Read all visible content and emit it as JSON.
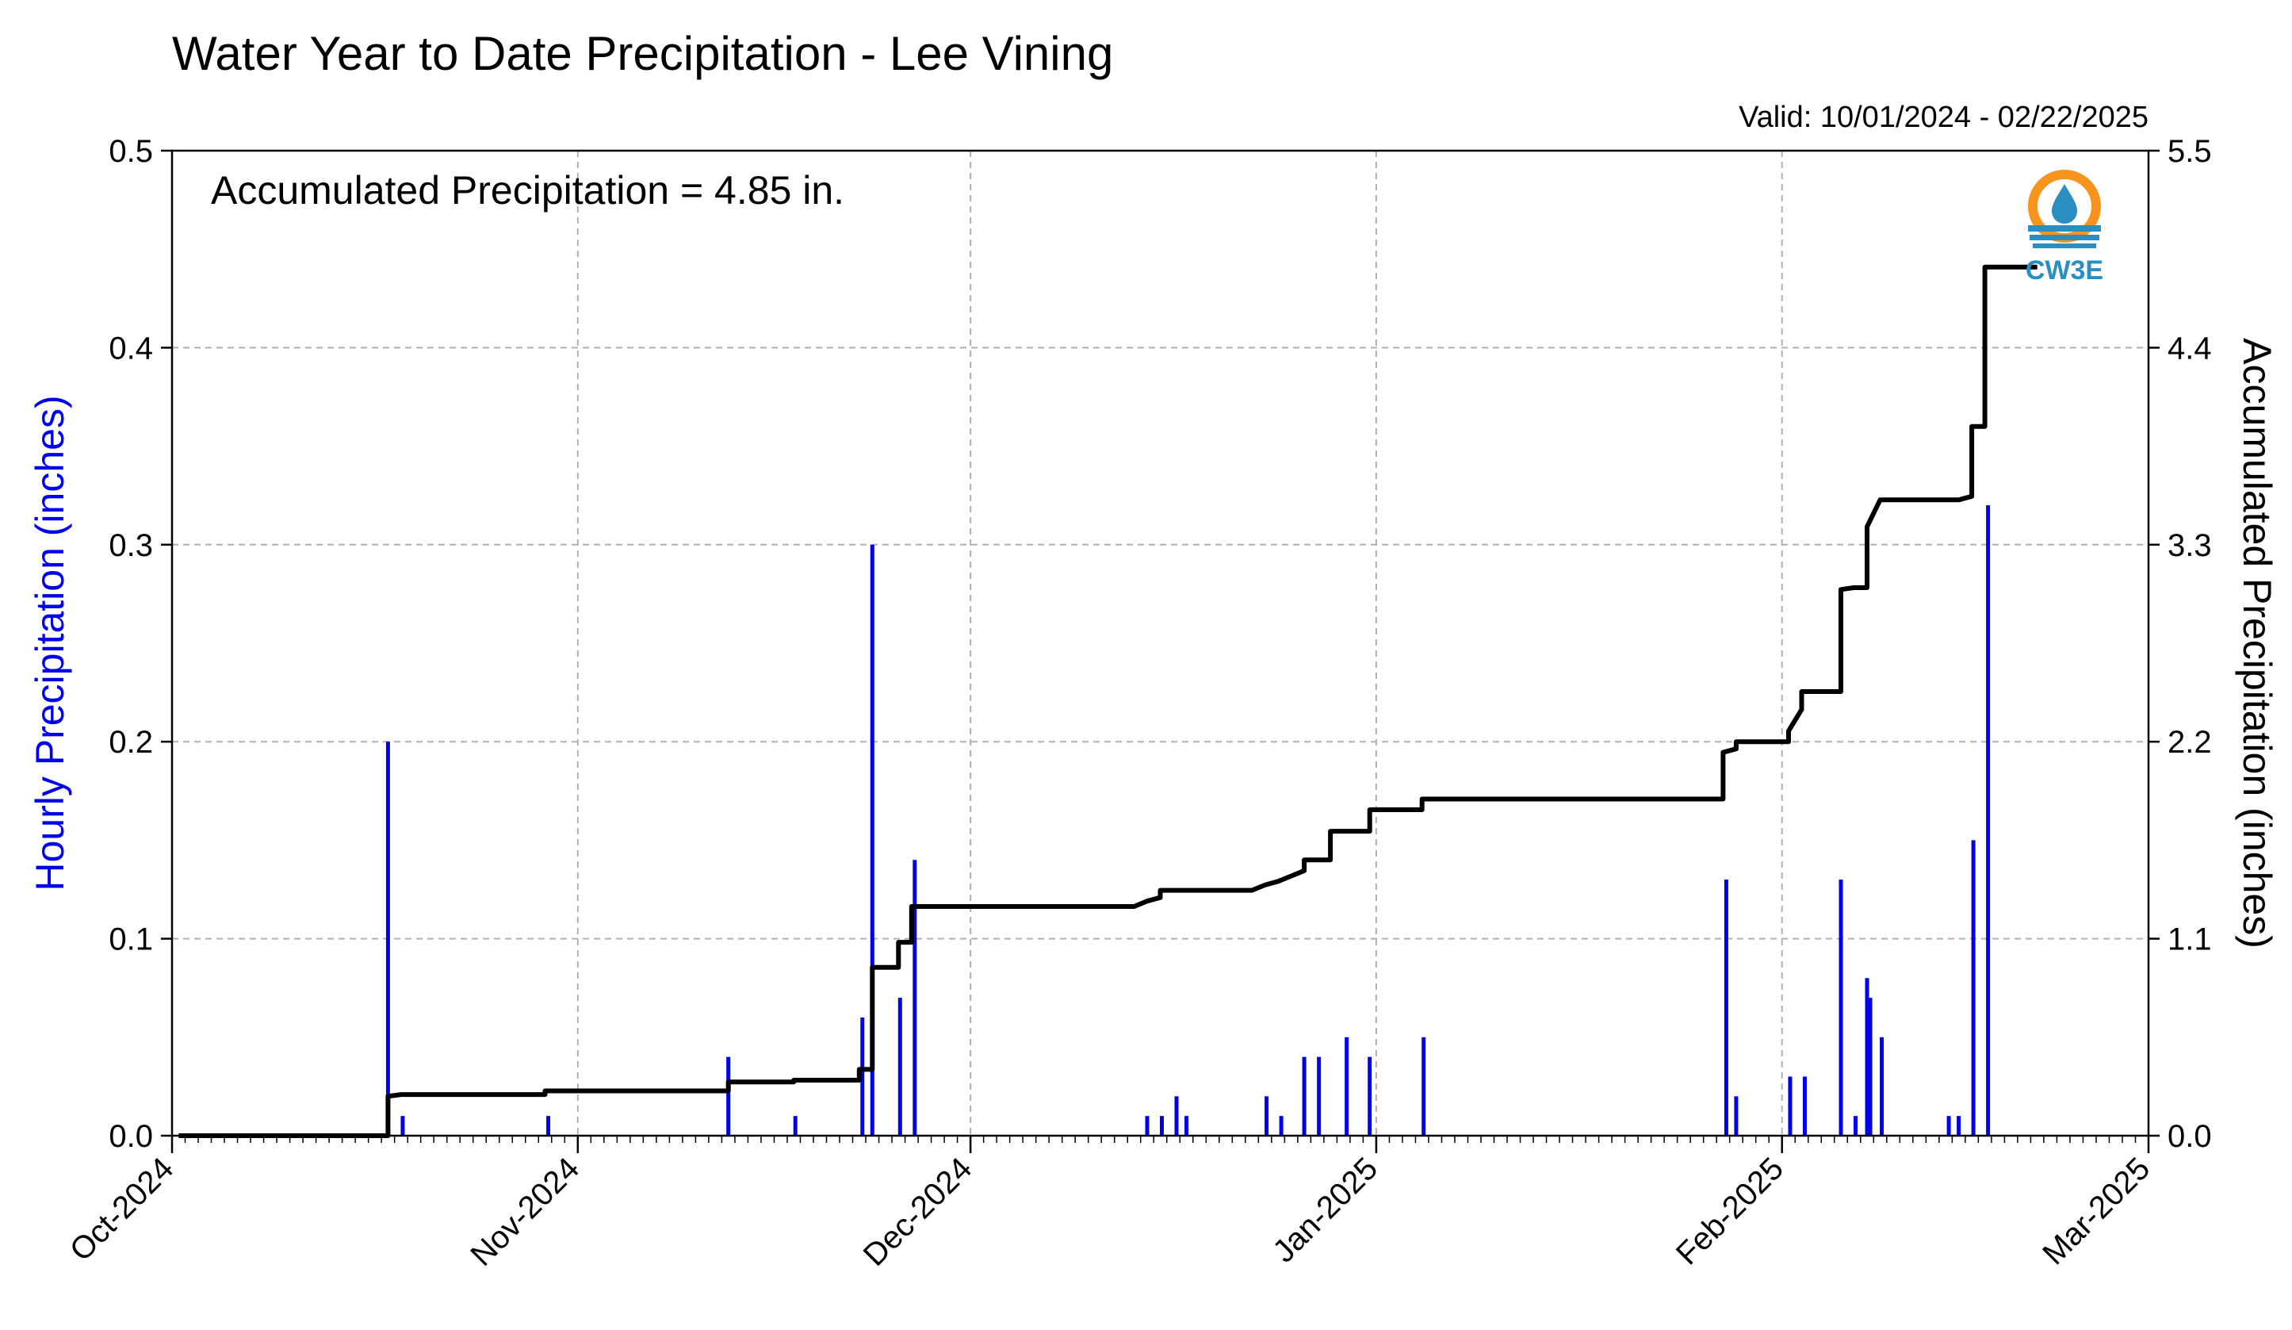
{
  "chart_data": {
    "type": "bar+line",
    "title": "Water Year to Date Precipitation - Lee Vining",
    "valid_label": "Valid: 10/01/2024 - 02/22/2025",
    "annotation": "Accumulated Precipitation = 4.85 in.",
    "logo_text": "CW3E",
    "y_left_label": "Hourly Precipitation (inches)",
    "y_right_label": "Accumulated Precipitation (inches)",
    "x_range": [
      "2024-10-01",
      "2025-03-01"
    ],
    "y_left_range": [
      0,
      0.5
    ],
    "y_right_range": [
      0,
      5.5
    ],
    "y_left_ticks": [
      {
        "value": 0.0,
        "label": "0.0"
      },
      {
        "value": 0.1,
        "label": "0.1"
      },
      {
        "value": 0.2,
        "label": "0.2"
      },
      {
        "value": 0.3,
        "label": "0.3"
      },
      {
        "value": 0.4,
        "label": "0.4"
      },
      {
        "value": 0.5,
        "label": "0.5"
      }
    ],
    "y_right_ticks": [
      {
        "value": 0.0,
        "label": "0.0"
      },
      {
        "value": 1.1,
        "label": "1.1"
      },
      {
        "value": 2.2,
        "label": "2.2"
      },
      {
        "value": 3.3,
        "label": "3.3"
      },
      {
        "value": 4.4,
        "label": "4.4"
      },
      {
        "value": 5.5,
        "label": "5.5"
      }
    ],
    "x_ticks": [
      {
        "date": "2024-10-01",
        "label": "Oct-2024"
      },
      {
        "date": "2024-11-01",
        "label": "Nov-2024"
      },
      {
        "date": "2024-12-01",
        "label": "Dec-2024"
      },
      {
        "date": "2025-01-01",
        "label": "Jan-2025"
      },
      {
        "date": "2025-02-01",
        "label": "Feb-2025"
      },
      {
        "date": "2025-03-01",
        "label": "Mar-2025"
      }
    ],
    "grid": true,
    "hourly_bars": {
      "color": "#0000ee",
      "points": [
        [
          "2024-10-17",
          0.2
        ],
        [
          "2024-10-18",
          0.01
        ],
        [
          "2024-10-29",
          0.01
        ],
        [
          "2024-11-12",
          0.04
        ],
        [
          "2024-11-17",
          0.01
        ],
        [
          "2024-11-22",
          0.06
        ],
        [
          "2024-11-23",
          0.3
        ],
        [
          "2024-11-25",
          0.07
        ],
        [
          "2024-11-26",
          0.14
        ],
        [
          "2024-12-14",
          0.01
        ],
        [
          "2024-12-15",
          0.01
        ],
        [
          "2024-12-16",
          0.02
        ],
        [
          "2024-12-17",
          0.01
        ],
        [
          "2024-12-23",
          0.02
        ],
        [
          "2024-12-24",
          0.01
        ],
        [
          "2024-12-26",
          0.04
        ],
        [
          "2024-12-27",
          0.04
        ],
        [
          "2024-12-29",
          0.05
        ],
        [
          "2024-12-31",
          0.04
        ],
        [
          "2025-01-04",
          0.05
        ],
        [
          "2025-01-27",
          0.13
        ],
        [
          "2025-01-28",
          0.02
        ],
        [
          "2025-02-01",
          0.03
        ],
        [
          "2025-02-02",
          0.03
        ],
        [
          "2025-02-05",
          0.13
        ],
        [
          "2025-02-06",
          0.01
        ],
        [
          "2025-02-07",
          0.07
        ],
        [
          "2025-02-07",
          0.08
        ],
        [
          "2025-02-08",
          0.05
        ],
        [
          "2025-02-13",
          0.01
        ],
        [
          "2025-02-14",
          0.01
        ],
        [
          "2025-02-15",
          0.15
        ],
        [
          "2025-02-16",
          0.32
        ]
      ]
    },
    "accumulated_line": {
      "color": "#000000",
      "points": [
        [
          "2024-10-01",
          0.0
        ],
        [
          "2024-10-17",
          0.0
        ],
        [
          "2024-10-17",
          0.22
        ],
        [
          "2024-10-18",
          0.23
        ],
        [
          "2024-10-29",
          0.23
        ],
        [
          "2024-10-29",
          0.25
        ],
        [
          "2024-11-12",
          0.25
        ],
        [
          "2024-11-12",
          0.3
        ],
        [
          "2024-11-17",
          0.3
        ],
        [
          "2024-11-17",
          0.31
        ],
        [
          "2024-11-22",
          0.31
        ],
        [
          "2024-11-22",
          0.37
        ],
        [
          "2024-11-23",
          0.37
        ],
        [
          "2024-11-23",
          0.94
        ],
        [
          "2024-11-25",
          0.94
        ],
        [
          "2024-11-25",
          1.08
        ],
        [
          "2024-11-26",
          1.08
        ],
        [
          "2024-11-26",
          1.28
        ],
        [
          "2024-12-13",
          1.28
        ],
        [
          "2024-12-14",
          1.31
        ],
        [
          "2024-12-15",
          1.33
        ],
        [
          "2024-12-15",
          1.37
        ],
        [
          "2024-12-22",
          1.37
        ],
        [
          "2024-12-23",
          1.4
        ],
        [
          "2024-12-24",
          1.42
        ],
        [
          "2024-12-25",
          1.45
        ],
        [
          "2024-12-26",
          1.48
        ],
        [
          "2024-12-26",
          1.54
        ],
        [
          "2024-12-28",
          1.54
        ],
        [
          "2024-12-28",
          1.7
        ],
        [
          "2024-12-31",
          1.7
        ],
        [
          "2024-12-31",
          1.82
        ],
        [
          "2025-01-04",
          1.82
        ],
        [
          "2025-01-04",
          1.88
        ],
        [
          "2025-01-27",
          1.88
        ],
        [
          "2025-01-27",
          2.14
        ],
        [
          "2025-01-28",
          2.16
        ],
        [
          "2025-01-28",
          2.2
        ],
        [
          "2025-02-01",
          2.2
        ],
        [
          "2025-02-01",
          2.26
        ],
        [
          "2025-02-02",
          2.38
        ],
        [
          "2025-02-02",
          2.48
        ],
        [
          "2025-02-05",
          2.48
        ],
        [
          "2025-02-05",
          3.05
        ],
        [
          "2025-02-06",
          3.06
        ],
        [
          "2025-02-07",
          3.06
        ],
        [
          "2025-02-07",
          3.4
        ],
        [
          "2025-02-08",
          3.55
        ],
        [
          "2025-02-14",
          3.55
        ],
        [
          "2025-02-15",
          3.57
        ],
        [
          "2025-02-15",
          3.96
        ],
        [
          "2025-02-16",
          3.96
        ],
        [
          "2025-02-16",
          4.85
        ],
        [
          "2025-02-20",
          4.85
        ]
      ]
    }
  }
}
